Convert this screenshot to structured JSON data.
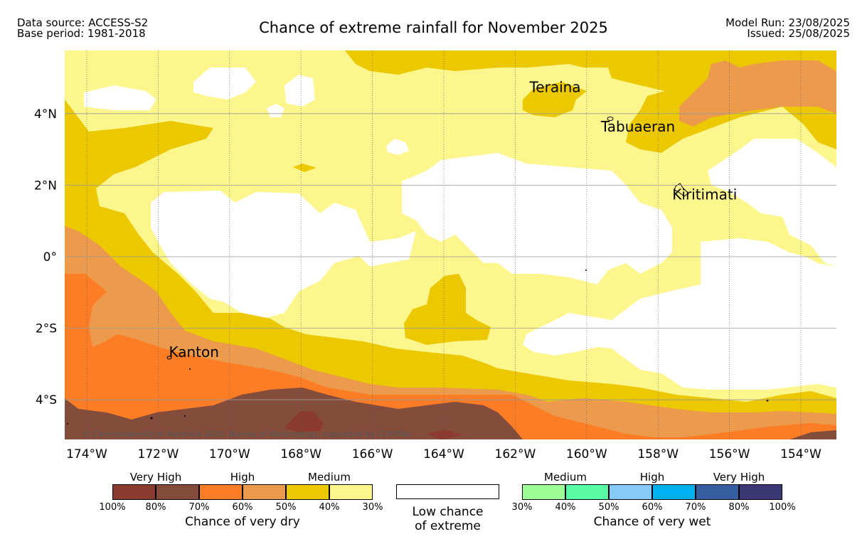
{
  "header": {
    "data_source": "Data source: ACCESS-S2",
    "base_period": "Base period: 1981-2018",
    "title": "Chance of extreme rainfall for November 2025",
    "model_run": "Model Run: 23/08/2025",
    "issued": "Issued: 25/08/2025"
  },
  "map": {
    "copyright": "© Commonwealth of Australia 2025, Bureau of Meteorology, supported by COSPPac",
    "lon_labels": [
      "174°W",
      "172°W",
      "170°W",
      "168°W",
      "166°W",
      "164°W",
      "162°W",
      "160°W",
      "158°W",
      "156°W",
      "154°W"
    ],
    "lat_labels": [
      "4°N",
      "2°N",
      "0°",
      "2°S",
      "4°S"
    ],
    "lon_values": [
      -174,
      -172,
      -170,
      -168,
      -166,
      -164,
      -162,
      -160,
      -158,
      -156,
      -154
    ],
    "lat_values": [
      4,
      2,
      0,
      -2,
      -4
    ],
    "places": [
      {
        "name": "Teraina",
        "lon": -161.6,
        "lat": 4.6
      },
      {
        "name": "Tabuaeran",
        "lon": -159.6,
        "lat": 3.5
      },
      {
        "name": "Kiritimati",
        "lon": -157.6,
        "lat": 1.6
      },
      {
        "name": "Kanton",
        "lon": -171.7,
        "lat": -2.8
      }
    ]
  },
  "legend": {
    "dry": {
      "groups": [
        "Very High",
        "High",
        "Medium"
      ],
      "colors": [
        "#8b3a30",
        "#844c3a",
        "#fd7d26",
        "#eb9b4b",
        "#ecc800",
        "#fcf68d"
      ],
      "ticks": [
        "100%",
        "80%",
        "70%",
        "60%",
        "50%",
        "40%",
        "30%"
      ],
      "caption": "Chance of very dry"
    },
    "low": {
      "caption_line1": "Low chance",
      "caption_line2": "of extreme",
      "color": "#ffffff"
    },
    "wet": {
      "groups": [
        "Medium",
        "High",
        "Very High"
      ],
      "colors": [
        "#9efc97",
        "#59fca4",
        "#86caf8",
        "#00b0ef",
        "#345e9f",
        "#3b3874"
      ],
      "ticks": [
        "30%",
        "40%",
        "50%",
        "60%",
        "70%",
        "80%",
        "100%"
      ],
      "caption": "Chance of very wet"
    }
  }
}
